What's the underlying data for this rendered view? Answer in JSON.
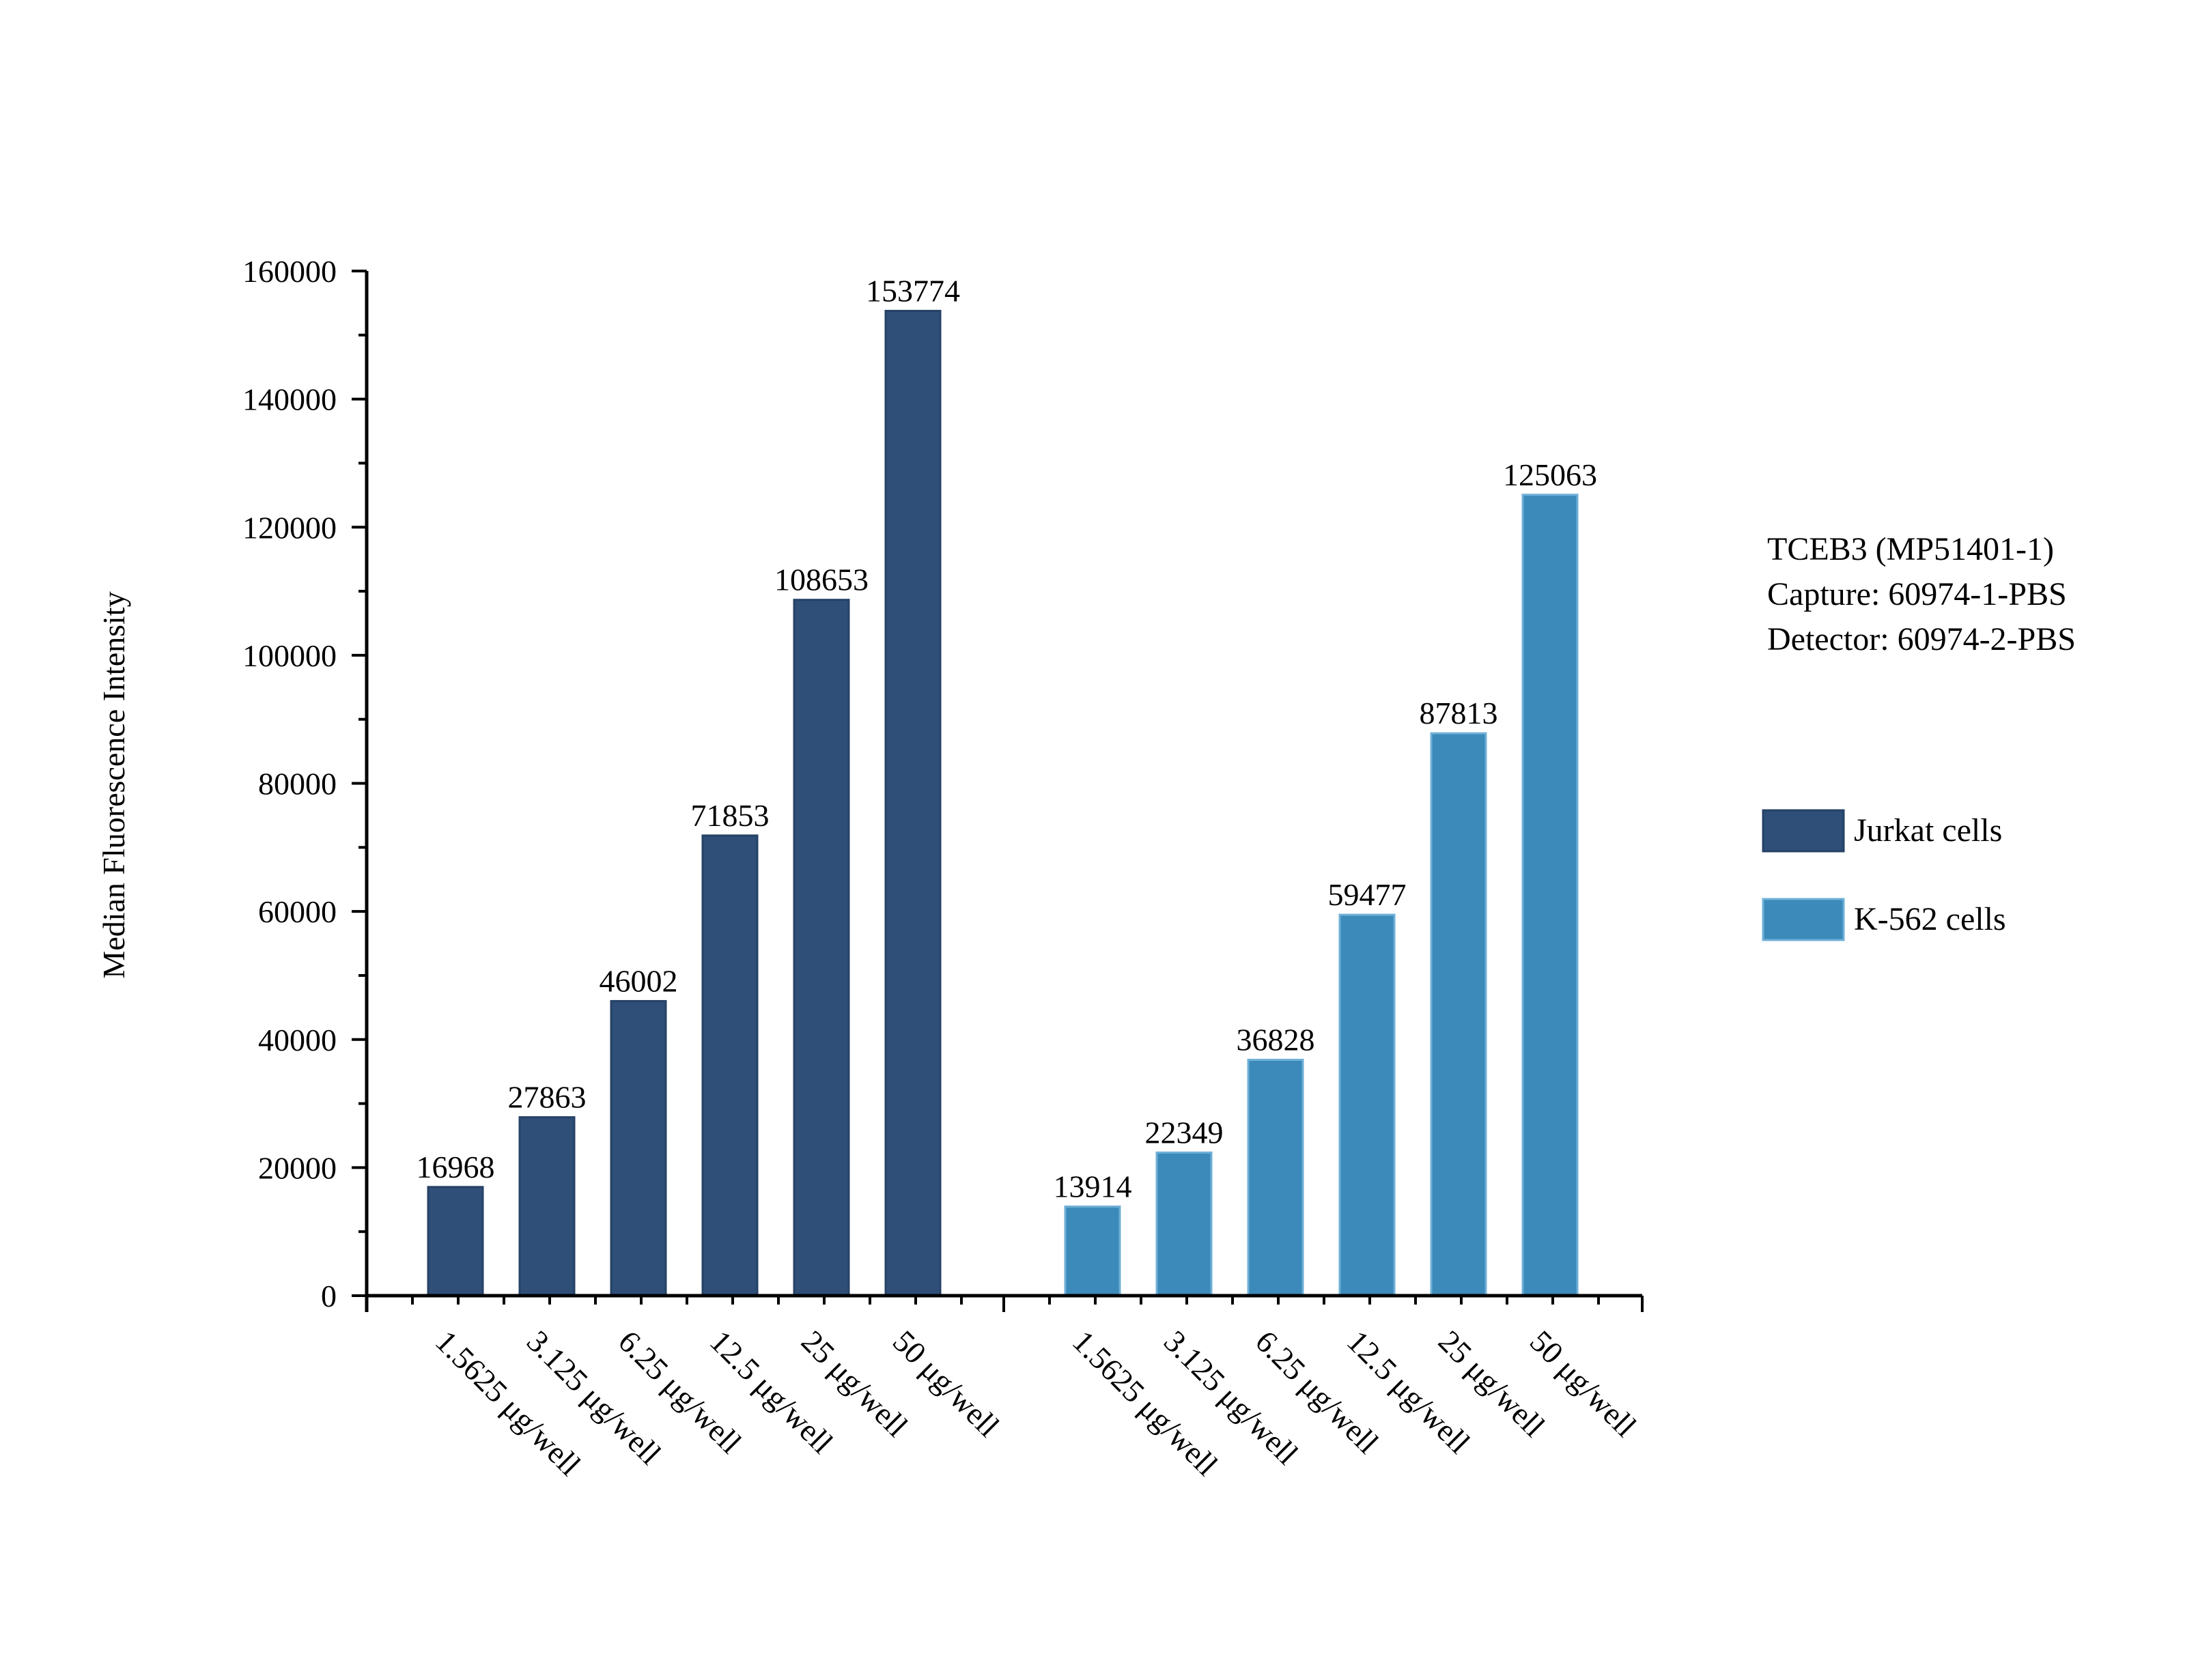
{
  "chart_data": {
    "type": "bar",
    "ylabel": "Median Fluorescence Intensity",
    "xlabel": "",
    "ylim": [
      0,
      160000
    ],
    "yticks": [
      0,
      20000,
      40000,
      60000,
      80000,
      100000,
      120000,
      140000,
      160000
    ],
    "grid": false,
    "legend_position": "right",
    "annotation": [
      "TCEB3 (MP51401-1)",
      "Capture: 60974-1-PBS",
      "Detector: 60974-2-PBS"
    ],
    "groups": [
      {
        "name": "Jurkat cells",
        "color": "#2f4f78",
        "categories": [
          "1.5625 μg/well",
          "3.125 μg/well",
          "6.25 μg/well",
          "12.5 μg/well",
          "25 μg/well",
          "50 μg/well"
        ],
        "values": [
          16968,
          27863,
          46002,
          71853,
          108653,
          153774
        ]
      },
      {
        "name": "K-562 cells",
        "color": "#3c8ab9",
        "categories": [
          "1.5625 μg/well",
          "3.125 μg/well",
          "6.25 μg/well",
          "12.5 μg/well",
          "25 μg/well",
          "50 μg/well"
        ],
        "values": [
          13914,
          22349,
          36828,
          59477,
          87813,
          125063
        ]
      }
    ]
  }
}
